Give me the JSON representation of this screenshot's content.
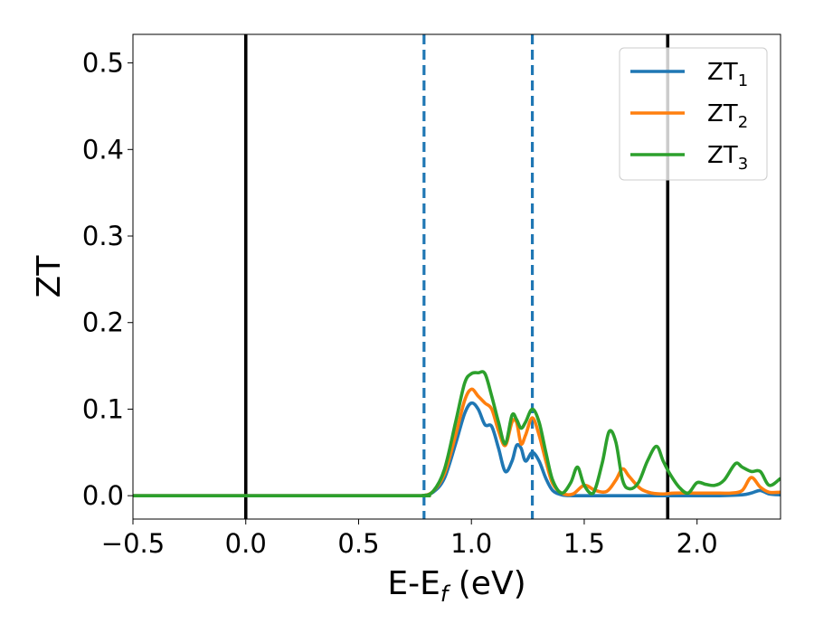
{
  "chart_data": {
    "type": "line",
    "xlabel": {
      "base": "E-E",
      "sub": "f",
      "suffix": " (eV)"
    },
    "ylabel": "ZT",
    "xlim": [
      -0.5,
      2.37
    ],
    "ylim": [
      -0.027,
      0.533
    ],
    "xticks": [
      -0.5,
      0.0,
      0.5,
      1.0,
      1.5,
      2.0
    ],
    "xtick_labels": [
      "−0.5",
      "0.0",
      "0.5",
      "1.0",
      "1.5",
      "2.0"
    ],
    "yticks": [
      0.0,
      0.1,
      0.2,
      0.3,
      0.4,
      0.5
    ],
    "ytick_labels": [
      "0.0",
      "0.1",
      "0.2",
      "0.3",
      "0.4",
      "0.5"
    ],
    "grid": false,
    "legend_position": "top-right",
    "vlines": [
      {
        "x": 0.0,
        "style": "solid",
        "color": "#000000"
      },
      {
        "x": 1.87,
        "style": "solid",
        "color": "#000000"
      },
      {
        "x": 0.79,
        "style": "dashed",
        "color": "#1f77b4"
      },
      {
        "x": 1.27,
        "style": "dashed",
        "color": "#1f77b4"
      }
    ],
    "series": [
      {
        "name": "ZT",
        "sub": "1",
        "color": "#1f77b4",
        "x": [
          -0.5,
          0.7,
          0.78,
          0.83,
          0.88,
          0.93,
          0.97,
          1.0,
          1.03,
          1.06,
          1.09,
          1.12,
          1.15,
          1.18,
          1.2,
          1.22,
          1.24,
          1.27,
          1.3,
          1.33,
          1.36,
          1.4,
          1.45,
          1.5,
          1.6,
          1.7,
          1.8,
          1.9,
          2.0,
          2.1,
          2.2,
          2.24,
          2.28,
          2.32,
          2.37
        ],
        "y": [
          0.0,
          0.0,
          0.0,
          0.004,
          0.02,
          0.06,
          0.095,
          0.107,
          0.1,
          0.082,
          0.08,
          0.055,
          0.028,
          0.04,
          0.058,
          0.055,
          0.04,
          0.05,
          0.04,
          0.02,
          0.006,
          0.001,
          0.0,
          0.0,
          0.0,
          0.0,
          0.0,
          0.0,
          0.0,
          0.0,
          0.001,
          0.003,
          0.006,
          0.002,
          0.001
        ]
      },
      {
        "name": "ZT",
        "sub": "2",
        "color": "#ff7f0e",
        "x": [
          -0.5,
          0.7,
          0.78,
          0.83,
          0.88,
          0.93,
          0.97,
          1.0,
          1.03,
          1.06,
          1.09,
          1.12,
          1.15,
          1.18,
          1.2,
          1.22,
          1.24,
          1.27,
          1.3,
          1.33,
          1.36,
          1.4,
          1.45,
          1.5,
          1.55,
          1.6,
          1.64,
          1.67,
          1.7,
          1.75,
          1.8,
          1.85,
          1.9,
          2.0,
          2.1,
          2.15,
          2.2,
          2.24,
          2.28,
          2.32,
          2.37
        ],
        "y": [
          0.0,
          0.0,
          0.0,
          0.005,
          0.025,
          0.07,
          0.11,
          0.123,
          0.115,
          0.107,
          0.1,
          0.075,
          0.058,
          0.085,
          0.085,
          0.06,
          0.07,
          0.09,
          0.07,
          0.04,
          0.014,
          0.003,
          0.002,
          0.012,
          0.006,
          0.005,
          0.018,
          0.031,
          0.022,
          0.008,
          0.003,
          0.002,
          0.003,
          0.003,
          0.003,
          0.003,
          0.006,
          0.021,
          0.01,
          0.004,
          0.004
        ]
      },
      {
        "name": "ZT",
        "sub": "3",
        "color": "#2ca02c",
        "x": [
          -0.5,
          0.7,
          0.78,
          0.83,
          0.88,
          0.93,
          0.97,
          1.0,
          1.03,
          1.06,
          1.09,
          1.12,
          1.15,
          1.18,
          1.2,
          1.22,
          1.24,
          1.27,
          1.3,
          1.33,
          1.36,
          1.4,
          1.44,
          1.47,
          1.5,
          1.54,
          1.58,
          1.61,
          1.64,
          1.67,
          1.7,
          1.74,
          1.78,
          1.82,
          1.85,
          1.88,
          1.92,
          1.96,
          2.0,
          2.04,
          2.08,
          2.12,
          2.17,
          2.2,
          2.24,
          2.28,
          2.32,
          2.37
        ],
        "y": [
          0.0,
          0.0,
          0.0,
          0.005,
          0.03,
          0.085,
          0.13,
          0.141,
          0.142,
          0.141,
          0.115,
          0.085,
          0.06,
          0.093,
          0.088,
          0.078,
          0.085,
          0.1,
          0.085,
          0.05,
          0.018,
          0.003,
          0.015,
          0.033,
          0.012,
          0.003,
          0.038,
          0.074,
          0.062,
          0.018,
          0.008,
          0.015,
          0.04,
          0.057,
          0.04,
          0.025,
          0.01,
          0.003,
          0.015,
          0.013,
          0.012,
          0.018,
          0.037,
          0.033,
          0.028,
          0.028,
          0.012,
          0.02
        ]
      }
    ]
  }
}
